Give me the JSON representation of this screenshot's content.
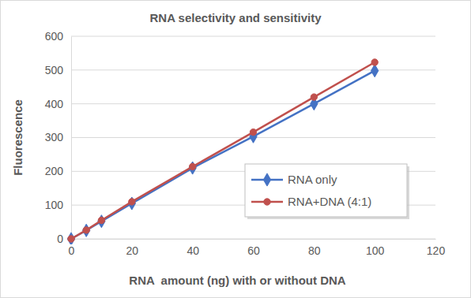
{
  "chart_data": {
    "type": "line",
    "title": "RNA selectivity and sensitivity",
    "x_label": "RNA  amount (ng) with or without DNA",
    "y_label": "Fluorescence",
    "x": [
      0,
      5,
      10,
      20,
      40,
      60,
      80,
      100
    ],
    "series": [
      {
        "name": "RNA only",
        "color": "#4472c4",
        "marker": "diamond",
        "line_style": "solid",
        "values": [
          0,
          25,
          52,
          105,
          210,
          303,
          400,
          498
        ]
      },
      {
        "name": "RNA+DNA (4:1)",
        "color": "#c0504d",
        "marker": "circle",
        "line_style": "solid",
        "values": [
          0,
          26,
          55,
          110,
          214,
          316,
          420,
          523
        ]
      }
    ],
    "xlim": [
      0,
      120
    ],
    "xticks": [
      0,
      20,
      40,
      60,
      80,
      100,
      120
    ],
    "ylim": [
      0,
      600
    ],
    "yticks": [
      0,
      100,
      200,
      300,
      400,
      500,
      600
    ],
    "grid": true,
    "legend": "lower right"
  }
}
